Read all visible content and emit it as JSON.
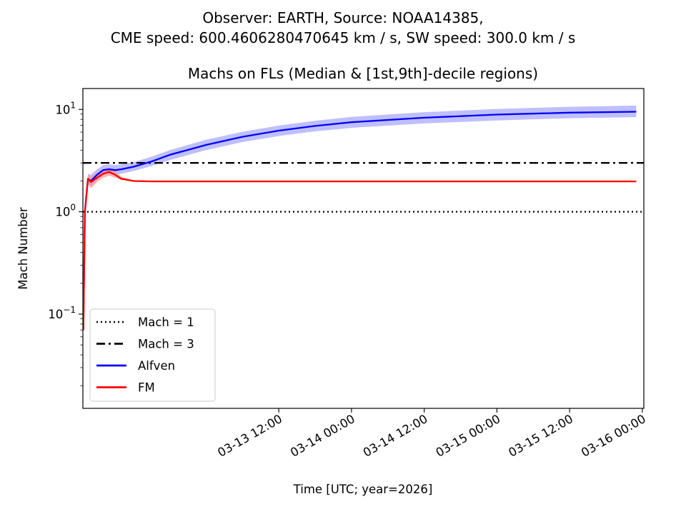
{
  "figure": {
    "suptitle_lines": [
      "Observer: EARTH, Source: NOAA14385,",
      "CME speed: 600.4606280470645 km / s, SW speed: 300.0 km / s"
    ]
  },
  "chart_data": {
    "type": "line",
    "title": "Machs on FLs (Median & [1st,9th]-decile regions)",
    "xlabel": "Time [UTC; year=2026]",
    "ylabel": "Mach Number",
    "yscale": "log",
    "ylim": [
      0.012,
      16
    ],
    "xlim": [
      "2026-03-12 03:40",
      "2026-03-16 00:15"
    ],
    "xticks": [
      "03-13 12:00",
      "03-14 00:00",
      "03-14 12:00",
      "03-15 00:00",
      "03-15 12:00",
      "03-16 00:00"
    ],
    "yticks": [
      "10^-1",
      "10^0",
      "10^1"
    ],
    "grid": false,
    "legend_position": "lower-left",
    "hlines": [
      {
        "name": "Mach = 1",
        "y": 1.0,
        "style": "dotted",
        "color": "#000000"
      },
      {
        "name": "Mach = 3",
        "y": 3.0,
        "style": "dashdot",
        "color": "#000000"
      }
    ],
    "series": [
      {
        "name": "Alfven",
        "color": "#0000ff",
        "band_color": "#aaaaff",
        "x": [
          "2026-03-12 03:45",
          "2026-03-12 04:00",
          "2026-03-12 04:30",
          "2026-03-12 05:00",
          "2026-03-12 06:00",
          "2026-03-12 07:00",
          "2026-03-12 08:00",
          "2026-03-12 09:00",
          "2026-03-12 10:00",
          "2026-03-12 12:00",
          "2026-03-12 15:00",
          "2026-03-12 18:00",
          "2026-03-13 00:00",
          "2026-03-13 06:00",
          "2026-03-13 12:00",
          "2026-03-13 18:00",
          "2026-03-14 00:00",
          "2026-03-14 12:00",
          "2026-03-15 00:00",
          "2026-03-15 12:00",
          "2026-03-15 23:00"
        ],
        "median": [
          0.07,
          1.0,
          2.1,
          2.0,
          2.3,
          2.55,
          2.6,
          2.55,
          2.6,
          2.75,
          3.1,
          3.6,
          4.5,
          5.4,
          6.2,
          6.9,
          7.5,
          8.3,
          8.9,
          9.3,
          9.5
        ],
        "decile_1": [
          0.07,
          0.9,
          1.85,
          1.75,
          2.05,
          2.3,
          2.35,
          2.3,
          2.35,
          2.5,
          2.8,
          3.2,
          4.0,
          4.8,
          5.5,
          6.1,
          6.6,
          7.3,
          7.8,
          8.2,
          8.4
        ],
        "decile_9": [
          0.07,
          1.1,
          2.35,
          2.3,
          2.6,
          2.85,
          2.9,
          2.85,
          2.9,
          3.05,
          3.45,
          4.0,
          5.05,
          6.05,
          6.95,
          7.75,
          8.45,
          9.4,
          10.1,
          10.6,
          10.9
        ]
      },
      {
        "name": "FM",
        "color": "#ff0000",
        "band_color": "#ff9999",
        "x": [
          "2026-03-12 03:45",
          "2026-03-12 04:00",
          "2026-03-12 04:30",
          "2026-03-12 05:00",
          "2026-03-12 06:00",
          "2026-03-12 07:00",
          "2026-03-12 08:00",
          "2026-03-12 09:00",
          "2026-03-12 10:00",
          "2026-03-12 12:00",
          "2026-03-12 15:00",
          "2026-03-12 18:00",
          "2026-03-13 00:00",
          "2026-03-13 12:00",
          "2026-03-14 00:00",
          "2026-03-14 12:00",
          "2026-03-15 00:00",
          "2026-03-15 12:00",
          "2026-03-15 23:00"
        ],
        "median": [
          0.07,
          1.0,
          2.1,
          1.95,
          2.15,
          2.35,
          2.45,
          2.3,
          2.1,
          2.0,
          1.98,
          1.98,
          1.98,
          1.98,
          1.98,
          1.98,
          1.98,
          1.98,
          1.98
        ],
        "decile_1": [
          0.07,
          0.9,
          1.9,
          1.7,
          1.95,
          2.15,
          2.25,
          2.15,
          2.05,
          1.97,
          1.96,
          1.96,
          1.96,
          1.96,
          1.96,
          1.96,
          1.96,
          1.96,
          1.96
        ],
        "decile_9": [
          0.07,
          1.1,
          2.3,
          2.2,
          2.4,
          2.6,
          2.7,
          2.5,
          2.2,
          2.03,
          2.0,
          2.0,
          2.0,
          2.0,
          2.0,
          2.0,
          2.0,
          2.0,
          2.0
        ]
      }
    ]
  }
}
